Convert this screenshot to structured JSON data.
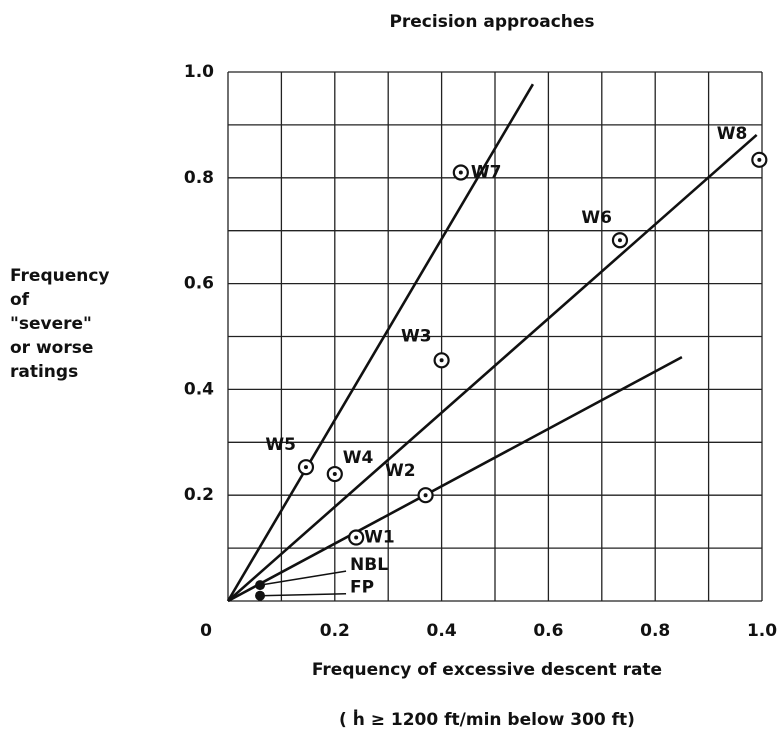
{
  "chart_data": {
    "type": "scatter",
    "title": "Precision approaches",
    "ylabel": [
      "Frequency",
      "of",
      "\"severe\"",
      "or worse",
      "ratings"
    ],
    "xlabel": "Frequency of excessive descent rate",
    "xlabel2": "( ḣ ≥ 1200 ft/min  below  300 ft)",
    "xlim": [
      0,
      1
    ],
    "ylim": [
      0,
      1
    ],
    "xticks": [
      0,
      0.2,
      0.4,
      0.6,
      0.8,
      {
        "value": 1,
        "label": "1.0"
      }
    ],
    "yticks": [
      0.2,
      0.4,
      0.6,
      0.8,
      {
        "value": 1,
        "label": "1.0"
      }
    ],
    "grid_lines": [
      0.1,
      0.2,
      0.3,
      0.4,
      0.5,
      0.6,
      0.7,
      0.8,
      0.9,
      1
    ],
    "grid": true,
    "points": {
      "names": [
        "W1",
        "W2",
        "W3",
        "W4",
        "W5",
        "W6",
        "W7",
        "W8",
        "NBL",
        "FP"
      ],
      "x": [
        0.24,
        0.37,
        0.4,
        0.2,
        0.146,
        0.734,
        0.436,
        0.995,
        0.06,
        0.06
      ],
      "y": [
        0.12,
        0.2,
        0.455,
        0.24,
        0.253,
        0.682,
        0.81,
        0.834,
        0.03,
        0.01
      ]
    },
    "lines": [
      {
        "x": [
          0,
          0.571
        ],
        "y": [
          0,
          0.977
        ]
      },
      {
        "x": [
          0,
          0.99
        ],
        "y": [
          0,
          0.881
        ]
      },
      {
        "x": [
          0,
          0.85
        ],
        "y": [
          0,
          0.461
        ]
      }
    ]
  }
}
